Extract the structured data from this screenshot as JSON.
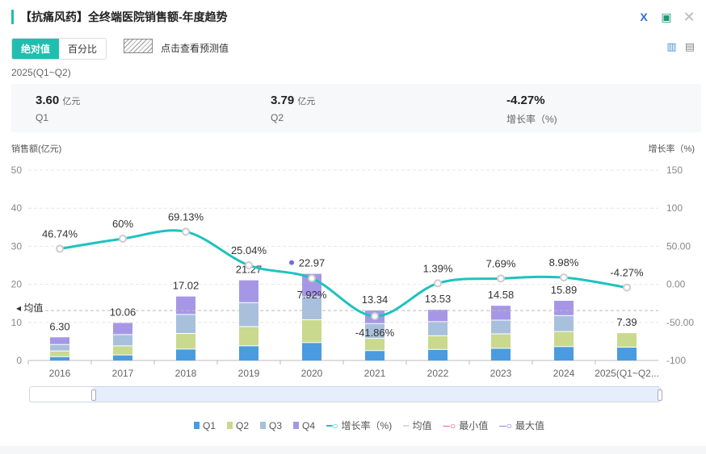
{
  "header": {
    "title": "【抗痛风药】全终端医院销售额-年度趋势",
    "icons": [
      "excel-icon",
      "image-icon",
      "close-icon"
    ]
  },
  "toolbar": {
    "abs_label": "绝对值",
    "pct_label": "百分比",
    "forecast_label": "点击查看预测值"
  },
  "period": "2025(Q1~Q2)",
  "summary": [
    {
      "value": "3.60",
      "unit": "亿元",
      "label": "Q1"
    },
    {
      "value": "3.79",
      "unit": "亿元",
      "label": "Q2"
    },
    {
      "value": "-4.27%",
      "unit": "",
      "label": "增长率（%)"
    }
  ],
  "chart_data": {
    "type": "bar",
    "ylabel": "销售额(亿元)",
    "y2label": "增长率（%)",
    "ylim": [
      0,
      50
    ],
    "yticks": [
      "0",
      "10",
      "20",
      "30",
      "40",
      "50"
    ],
    "y2lim": [
      -100,
      150
    ],
    "y2ticks": [
      "-100",
      "-50.00",
      "0.00",
      "50.00",
      "100",
      "150"
    ],
    "categories": [
      "2016",
      "2017",
      "2018",
      "2019",
      "2020",
      "2021",
      "2022",
      "2023",
      "2024",
      "2025(Q1~Q2..."
    ],
    "series": [
      {
        "name": "Q1",
        "color": "#4a9be0",
        "values": [
          1.1,
          1.55,
          3.1,
          3.95,
          4.8,
          2.7,
          3.0,
          3.3,
          3.75,
          3.6
        ]
      },
      {
        "name": "Q2",
        "color": "#c9d98e",
        "values": [
          1.5,
          2.4,
          4.1,
          5.05,
          6.0,
          3.2,
          3.6,
          3.8,
          3.95,
          3.79
        ]
      },
      {
        "name": "Q3",
        "color": "#a8c0dc",
        "values": [
          1.7,
          2.95,
          5.0,
          6.3,
          6.0,
          3.9,
          3.7,
          3.6,
          4.2,
          0
        ]
      },
      {
        "name": "Q4",
        "color": "#a697e6",
        "values": [
          2.0,
          3.16,
          4.82,
          5.97,
          6.17,
          3.54,
          3.23,
          3.88,
          3.99,
          0
        ]
      }
    ],
    "totals": [
      "6.30",
      "10.06",
      "17.02",
      "21.27",
      "22.97",
      "13.34",
      "13.53",
      "14.58",
      "15.89",
      "7.39"
    ],
    "growth": {
      "name": "增长率（%)",
      "color": "#1fc2bf",
      "values": [
        46.74,
        60,
        69.13,
        25.04,
        7.92,
        -41.86,
        1.39,
        7.69,
        8.98,
        -4.27
      ],
      "labels": [
        "46.74%",
        "60%",
        "69.13%",
        "25.04%",
        "7.92%",
        "-41.86%",
        "1.39%",
        "7.69%",
        "8.98%",
        "-4.27%"
      ]
    },
    "average": {
      "label": "均值",
      "value": 13.1
    },
    "legend": [
      "Q1",
      "Q2",
      "Q3",
      "Q4",
      "增长率（%)",
      "均值",
      "最小值",
      "最大值"
    ]
  }
}
